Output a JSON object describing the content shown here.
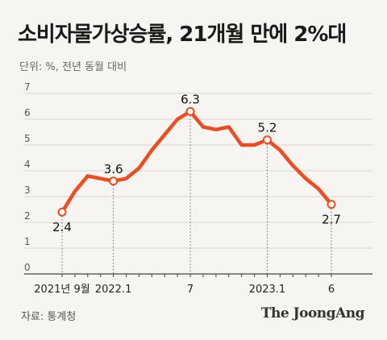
{
  "title": "소비자물가상승률, 21개월 만에 2%대",
  "unit_label": "단위: %, 전년 동월 대비",
  "source": "자료: 통계청",
  "brand": "The JoongAng",
  "colors": {
    "line": "#f04b1e",
    "axis": "#444444",
    "grid": "#d9d6d2",
    "background": "#f7f5f2"
  },
  "chart_data": {
    "type": "line",
    "title": "소비자물가상승률, 21개월 만에 2%대",
    "ylabel": "단위: %, 전년 동월 대비",
    "ylim": [
      0,
      7
    ],
    "yticks": [
      "0",
      "1",
      "2",
      "3",
      "4",
      "5",
      "6",
      "7"
    ],
    "grid": true,
    "x": [
      "2021-09",
      "2021-10",
      "2021-11",
      "2021-12",
      "2022-01",
      "2022-02",
      "2022-03",
      "2022-04",
      "2022-05",
      "2022-06",
      "2022-07",
      "2022-08",
      "2022-09",
      "2022-10",
      "2022-11",
      "2022-12",
      "2023-01",
      "2023-02",
      "2023-03",
      "2023-04",
      "2023-05",
      "2023-06"
    ],
    "values": [
      2.4,
      3.2,
      3.8,
      3.7,
      3.6,
      3.7,
      4.1,
      4.8,
      5.4,
      6.0,
      6.3,
      5.7,
      5.6,
      5.7,
      5.0,
      5.0,
      5.2,
      4.8,
      4.2,
      3.7,
      3.3,
      2.7
    ],
    "xtick_labels": [
      {
        "index": 0,
        "label": "2021년 9월"
      },
      {
        "index": 4,
        "label": "2022.1"
      },
      {
        "index": 10,
        "label": "7"
      },
      {
        "index": 16,
        "label": "2023.1"
      },
      {
        "index": 21,
        "label": "6"
      }
    ],
    "annotations": [
      {
        "index": 0,
        "label": "2.4",
        "position": "below"
      },
      {
        "index": 4,
        "label": "3.6",
        "position": "above"
      },
      {
        "index": 10,
        "label": "6.3",
        "position": "above"
      },
      {
        "index": 16,
        "label": "5.2",
        "position": "above"
      },
      {
        "index": 21,
        "label": "2.7",
        "position": "below"
      }
    ]
  }
}
